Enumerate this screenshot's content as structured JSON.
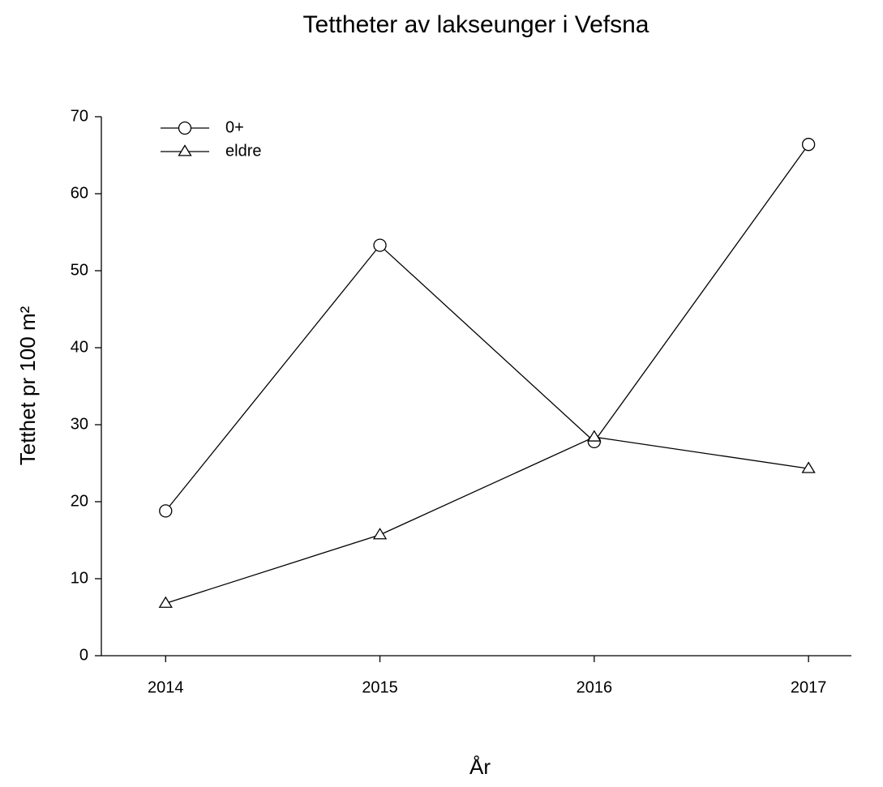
{
  "chart_data": {
    "type": "line",
    "title": "Tettheter av lakseunger i Vefsna",
    "x_label": "År",
    "y_label": "Tetthet pr 100 m²",
    "x": [
      2014,
      2015,
      2016,
      2017
    ],
    "series": [
      {
        "name": "0+",
        "color": "#000000",
        "marker": "circle",
        "values": [
          18.8,
          53.3,
          27.8,
          66.4
        ]
      },
      {
        "name": "eldre",
        "color": "#000000",
        "marker": "triangle",
        "values": [
          6.8,
          15.7,
          28.4,
          24.3
        ]
      }
    ],
    "xlim": [
      2013.7,
      2017.2
    ],
    "xticks": [
      2014,
      2015,
      2016,
      2017
    ],
    "ylim": [
      0,
      70
    ],
    "yticks": [
      0,
      10,
      20,
      30,
      40,
      50,
      60,
      70
    ],
    "grid": false,
    "legend": "upper left"
  }
}
